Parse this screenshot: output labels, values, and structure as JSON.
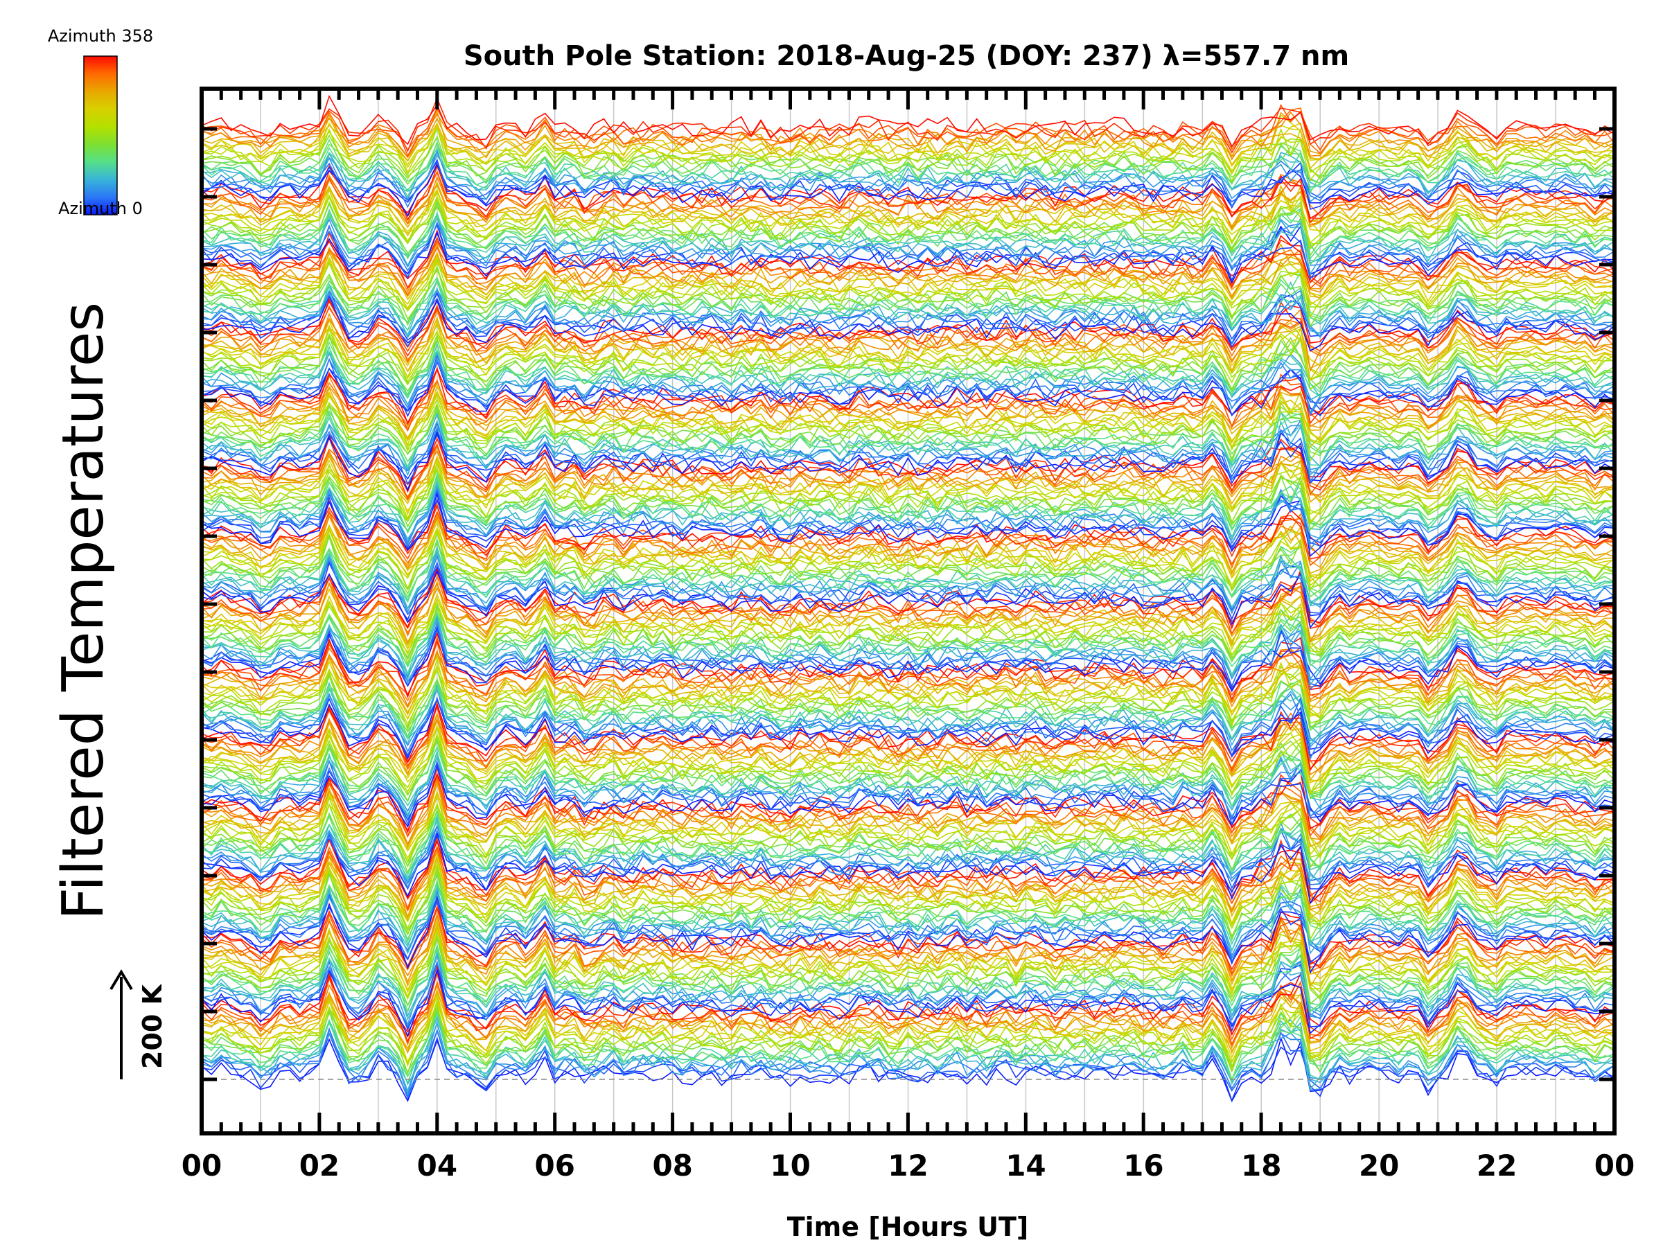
{
  "chart_data": {
    "type": "line",
    "title": "South Pole Station: 2018-Aug-25 (DOY: 237) λ=557.7 nm",
    "xlabel": "Time [Hours UT]",
    "ylabel": "Filtered Temperatures",
    "xlim": [
      0,
      24
    ],
    "x_tick_labels": [
      "00",
      "02",
      "04",
      "06",
      "08",
      "10",
      "12",
      "14",
      "16",
      "18",
      "20",
      "22",
      "00"
    ],
    "x_major_step_hours": 2,
    "x_minor_step_hours": 0.3333,
    "grid": "vertical every hour",
    "y_offset_bands": 14,
    "azimuths_per_band": 25,
    "scale_bar": {
      "label": "200 K",
      "kelvin": 200
    },
    "colorbar": {
      "top_label": "Azimuth 358",
      "bottom_label": "Azimuth 0",
      "min": 0,
      "max": 358,
      "stops": [
        "#0a1aff",
        "#2a78f5",
        "#38b4d8",
        "#55e08a",
        "#7ee030",
        "#b4e000",
        "#d8d000",
        "#e8a800",
        "#ff6a00",
        "#ff0a00"
      ]
    },
    "sample_step_minutes": 10,
    "common_events": [
      {
        "hour": 0.3,
        "kelvin": 15
      },
      {
        "hour": 1.1,
        "kelvin": -20
      },
      {
        "hour": 2.2,
        "kelvin": 55
      },
      {
        "hour": 2.6,
        "kelvin": -18
      },
      {
        "hour": 3.05,
        "kelvin": 20
      },
      {
        "hour": 3.5,
        "kelvin": -45
      },
      {
        "hour": 4.0,
        "kelvin": 65
      },
      {
        "hour": 4.75,
        "kelvin": -35
      },
      {
        "hour": 5.2,
        "kelvin": 15
      },
      {
        "hour": 5.5,
        "kelvin": -15
      },
      {
        "hour": 5.8,
        "kelvin": 35
      },
      {
        "hour": 6.6,
        "kelvin": -12
      },
      {
        "hour": 17.2,
        "kelvin": 30
      },
      {
        "hour": 17.5,
        "kelvin": -35
      },
      {
        "hour": 18.3,
        "kelvin": 40
      },
      {
        "hour": 18.6,
        "kelvin": 55
      },
      {
        "hour": 18.9,
        "kelvin": -45
      },
      {
        "hour": 20.9,
        "kelvin": -25
      },
      {
        "hour": 21.4,
        "kelvin": 50
      },
      {
        "hour": 22.0,
        "kelvin": -15
      },
      {
        "hour": 23.7,
        "kelvin": -20
      }
    ]
  }
}
